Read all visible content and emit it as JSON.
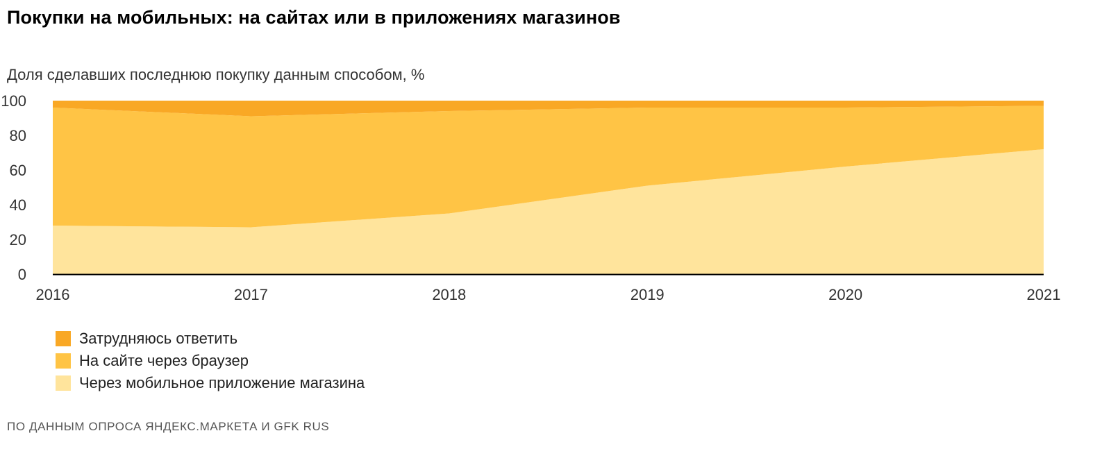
{
  "header": {
    "title": "Покупки на мобильных: на сайтах или в приложениях магазинов",
    "subtitle": "Доля сделавших последнюю покупку данным способом, %"
  },
  "footer": {
    "source": "ПО ДАННЫМ ОПРОСА ЯНДЕКС.МАРКЕТА И GFK RUS"
  },
  "colors": {
    "hard_to_answer": "#F9A825",
    "browser": "#FFC445",
    "app": "#FFE49C",
    "axis": "#000000"
  },
  "legend": [
    {
      "label": "Затрудняюсь ответить",
      "color": "#F9A825"
    },
    {
      "label": "На сайте через браузер",
      "color": "#FFC445"
    },
    {
      "label": "Через мобильное приложение магазина",
      "color": "#FFE49C"
    }
  ],
  "chart_data": {
    "type": "area",
    "stacked": true,
    "x": [
      2016,
      2017,
      2018,
      2019,
      2020,
      2021
    ],
    "x_tick_labels": [
      "2016",
      "2017",
      "2018",
      "2019",
      "2020",
      "2021"
    ],
    "y_tick_labels": [
      "0",
      "20",
      "40",
      "60",
      "80",
      "100"
    ],
    "y_ticks": [
      0,
      20,
      40,
      60,
      80,
      100
    ],
    "ylim": [
      0,
      100
    ],
    "series": [
      {
        "name": "Через мобильное приложение магазина",
        "color": "#FFE49C",
        "values": [
          28,
          27,
          35,
          51,
          62,
          72
        ]
      },
      {
        "name": "На сайте через браузер",
        "color": "#FFC445",
        "values": [
          68,
          64,
          59,
          45,
          34,
          25
        ]
      },
      {
        "name": "Затрудняюсь ответить",
        "color": "#F9A825",
        "values": [
          4,
          9,
          6,
          4,
          4,
          3
        ]
      }
    ],
    "legend_position": "bottom-left",
    "grid": false
  }
}
